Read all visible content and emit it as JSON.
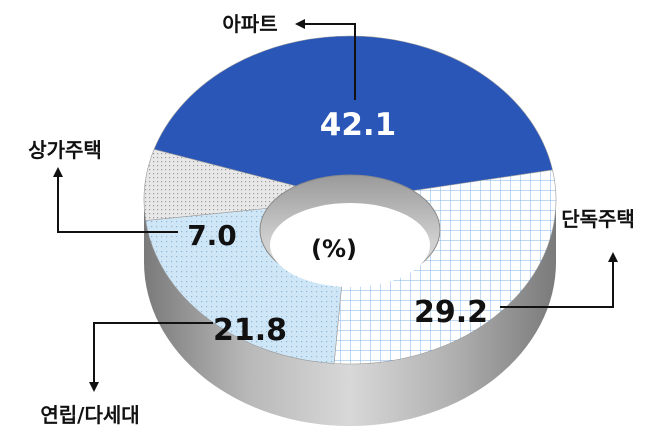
{
  "chart_data": {
    "type": "pie",
    "subtype": "donut-3d",
    "unit_label": "(%)",
    "slices": [
      {
        "name": "아파트",
        "value": 42.1,
        "color": "#2a56b8",
        "pattern": "solid",
        "value_color": "#ffffff"
      },
      {
        "name": "단독주택",
        "value": 29.2,
        "color": "#ffffff",
        "pattern": "grid",
        "pattern_color": "#7fb2e8",
        "value_color": "#111111"
      },
      {
        "name": "연립/다세대",
        "value": 21.8,
        "color": "#cfe6f6",
        "pattern": "dots",
        "pattern_color": "#8fb8d8",
        "value_color": "#111111"
      },
      {
        "name": "상가주택",
        "value": 7.0,
        "color": "#e6e6e6",
        "pattern": "dots",
        "pattern_color": "#9a9a9a",
        "value_color": "#111111"
      }
    ]
  }
}
